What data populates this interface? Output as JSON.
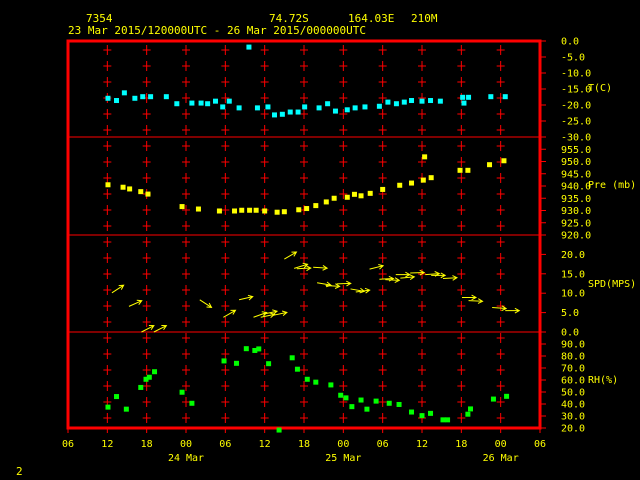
{
  "header": {
    "station": "7354",
    "lat": "74.72S",
    "lon": "164.03E",
    "elev": "210M",
    "period": "23 Mar 2015/120000UTC - 26 Mar 2015/000000UTC"
  },
  "footer": {
    "page": "2"
  },
  "colors": {
    "background": "#000000",
    "frame": "#ff0000",
    "grid_marks": "#ff0000",
    "text": "#ffff00",
    "temperature": "#00ffff",
    "pressure": "#ffff00",
    "wind": "#ffff00",
    "humidity": "#00ff00"
  },
  "chart_data": {
    "type": "scatter",
    "x_axis": {
      "unit": "hours",
      "start": "23 Mar 2015 06 UTC",
      "range": [
        0,
        72
      ],
      "hour_ticks": [
        "06",
        "12",
        "18",
        "00",
        "06",
        "12",
        "18",
        "00",
        "06",
        "12",
        "18",
        "00",
        "06"
      ],
      "date_labels": [
        {
          "label": "24 Mar",
          "hour": 18
        },
        {
          "label": "25 Mar",
          "hour": 42
        },
        {
          "label": "26 Mar",
          "hour": 66
        }
      ]
    },
    "panels": [
      {
        "name": "T(C)",
        "range": [
          -30,
          0
        ],
        "ticks": [
          "0.0",
          "-5.0",
          "-10.0",
          "-15.0",
          "-20.0",
          "-25.0",
          "-30.0"
        ],
        "tick_values": [
          0,
          -5,
          -10,
          -15,
          -20,
          -25,
          -30
        ],
        "series": {
          "marker": "square",
          "color": "#00ffff",
          "x": [
            6.1,
            7.4,
            8.6,
            10.2,
            11.4,
            12.6,
            15.0,
            16.6,
            18.9,
            20.3,
            21.3,
            22.5,
            23.6,
            24.6,
            26.1,
            27.6,
            28.9,
            30.5,
            31.5,
            32.7,
            33.9,
            35.1,
            36.1,
            38.3,
            39.6,
            40.8,
            42.6,
            43.8,
            45.3,
            47.5,
            48.8,
            50.1,
            51.3,
            52.4,
            54.0,
            55.3,
            56.8,
            60.2,
            60.4,
            61.1,
            64.5,
            66.7
          ],
          "y": [
            -17.9,
            -18.6,
            -16.2,
            -17.9,
            -17.4,
            -17.4,
            -17.4,
            -19.6,
            -19.4,
            -19.4,
            -19.6,
            -18.8,
            -20.6,
            -18.8,
            -20.9,
            -1.9,
            -20.9,
            -20.6,
            -23.1,
            -22.9,
            -22.2,
            -22.2,
            -20.6,
            -20.9,
            -19.6,
            -21.9,
            -21.5,
            -20.9,
            -20.6,
            -20.4,
            -19.1,
            -19.6,
            -19.1,
            -18.6,
            -18.8,
            -18.6,
            -18.8,
            -17.6,
            -19.4,
            -17.6,
            -17.4,
            -17.4
          ]
        }
      },
      {
        "name": "Pre (mb)",
        "range": [
          920,
          960
        ],
        "ticks": [
          "955.0",
          "950.0",
          "945.0",
          "940.0",
          "935.0",
          "930.0",
          "925.0",
          "920.0"
        ],
        "tick_values": [
          955,
          950,
          945,
          940,
          935,
          930,
          925,
          920
        ],
        "series": {
          "marker": "square",
          "color": "#ffff00",
          "x": [
            6.1,
            8.4,
            9.4,
            11.1,
            12.2,
            17.4,
            19.9,
            23.1,
            25.4,
            26.5,
            27.7,
            28.7,
            30.0,
            31.9,
            33.0,
            35.2,
            36.4,
            37.8,
            39.4,
            40.6,
            42.6,
            43.7,
            44.7,
            46.1,
            48.0,
            50.6,
            52.4,
            54.2,
            54.4,
            55.4,
            59.8,
            61.0,
            64.3,
            66.5
          ],
          "y": [
            940.5,
            939.5,
            938.8,
            937.7,
            936.7,
            931.6,
            930.6,
            929.8,
            929.8,
            930.1,
            930.1,
            930.1,
            929.8,
            929.3,
            929.5,
            930.3,
            930.8,
            932.0,
            933.5,
            935.0,
            935.4,
            936.6,
            936.0,
            937.0,
            938.6,
            940.3,
            941.2,
            942.4,
            951.9,
            943.4,
            946.4,
            946.4,
            948.7,
            950.3
          ]
        }
      },
      {
        "name": "SPD(MPS)",
        "range": [
          0,
          25
        ],
        "ticks": [
          "20.0",
          "15.0",
          "10.0",
          "5.0",
          "0.0"
        ],
        "tick_values": [
          20,
          15,
          10,
          5,
          0
        ],
        "series": {
          "marker": "wind-arrow",
          "color": "#ffff00",
          "x": [
            6.7,
            9.3,
            11.2,
            13.1,
            20.1,
            23.7,
            26.1,
            28.3,
            29.4,
            29.8,
            31.3,
            33.0,
            34.5,
            34.9,
            37.4,
            38.0,
            39.3,
            41.0,
            43.1,
            43.9,
            46.0,
            47.5,
            48.4,
            50.0,
            50.7,
            52.2,
            54.5,
            55.4,
            57.2,
            60.1,
            61.1,
            64.7,
            66.7
          ],
          "y": [
            10.1,
            6.6,
            0.0,
            0.0,
            8.3,
            3.8,
            8.3,
            3.8,
            3.8,
            4.6,
            4.3,
            18.8,
            16.4,
            16.3,
            16.7,
            12.7,
            12.0,
            12.4,
            11.1,
            10.3,
            16.2,
            13.6,
            13.5,
            14.8,
            13.9,
            15.2,
            14.8,
            14.6,
            13.8,
            8.9,
            8.1,
            6.3,
            5.5
          ],
          "dir_deg": [
            -33,
            -24,
            -27,
            -27,
            33,
            -30,
            -13,
            -20,
            -12,
            -12,
            -12,
            -30,
            -17,
            -3,
            4,
            10,
            4,
            -2,
            10,
            -8,
            -14,
            -3,
            3,
            0,
            -5,
            -2,
            -4,
            0,
            -3,
            0,
            3,
            4,
            0
          ]
        }
      },
      {
        "name": "RH(%)",
        "range": [
          20,
          100
        ],
        "ticks": [
          "90.0",
          "80.0",
          "70.0",
          "60.0",
          "50.0",
          "40.0",
          "30.0",
          "20.0"
        ],
        "tick_values": [
          90,
          80,
          70,
          60,
          50,
          40,
          30,
          20
        ],
        "series": {
          "marker": "square",
          "color": "#00ff00",
          "x": [
            6.1,
            7.4,
            8.9,
            11.1,
            11.9,
            12.4,
            13.2,
            17.4,
            18.9,
            23.8,
            25.7,
            27.2,
            28.5,
            29.1,
            30.6,
            32.2,
            34.2,
            35.0,
            36.5,
            37.8,
            40.1,
            41.6,
            42.4,
            43.3,
            44.7,
            45.6,
            47.0,
            49.0,
            50.5,
            52.4,
            54.0,
            55.3,
            57.2,
            57.9,
            61.0,
            61.4,
            64.9,
            66.9
          ],
          "y": [
            37.4,
            46.2,
            35.7,
            53.8,
            60.6,
            62.3,
            66.9,
            49.8,
            40.6,
            75.9,
            73.9,
            86.1,
            84.6,
            85.9,
            73.6,
            18.3,
            78.5,
            69.0,
            60.6,
            58.2,
            55.9,
            47.3,
            45.1,
            37.8,
            43.3,
            35.7,
            42.4,
            40.6,
            39.6,
            33.3,
            30.3,
            32.2,
            26.8,
            26.8,
            31.5,
            35.9,
            44.1,
            46.4
          ]
        }
      }
    ]
  }
}
